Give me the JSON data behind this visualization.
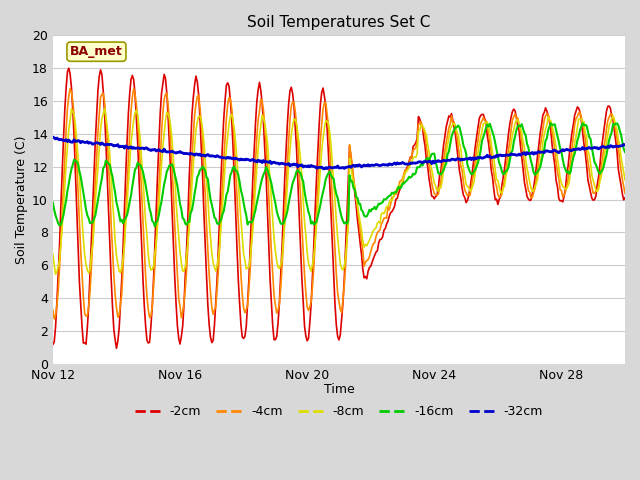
{
  "title": "Soil Temperatures Set C",
  "xlabel": "Time",
  "ylabel": "Soil Temperature (C)",
  "ylim": [
    0,
    20
  ],
  "annotation": "BA_met",
  "fig_bg_color": "#d8d8d8",
  "plot_bg_color": "#ffffff",
  "grid_color": "#cccccc",
  "series": {
    "-2cm": {
      "color": "#dd0000",
      "lw": 1.2
    },
    "-4cm": {
      "color": "#ff8800",
      "lw": 1.2
    },
    "-8cm": {
      "color": "#dddd00",
      "lw": 1.2
    },
    "-16cm": {
      "color": "#00cc00",
      "lw": 1.5
    },
    "-32cm": {
      "color": "#0000cc",
      "lw": 2.0
    }
  },
  "xtick_positions": [
    0,
    4,
    8,
    12,
    16
  ],
  "xtick_labels": [
    "Nov 12",
    "Nov 16",
    "Nov 20",
    "Nov 24",
    "Nov 28"
  ],
  "ytick_positions": [
    0,
    2,
    4,
    6,
    8,
    10,
    12,
    14,
    16,
    18,
    20
  ]
}
